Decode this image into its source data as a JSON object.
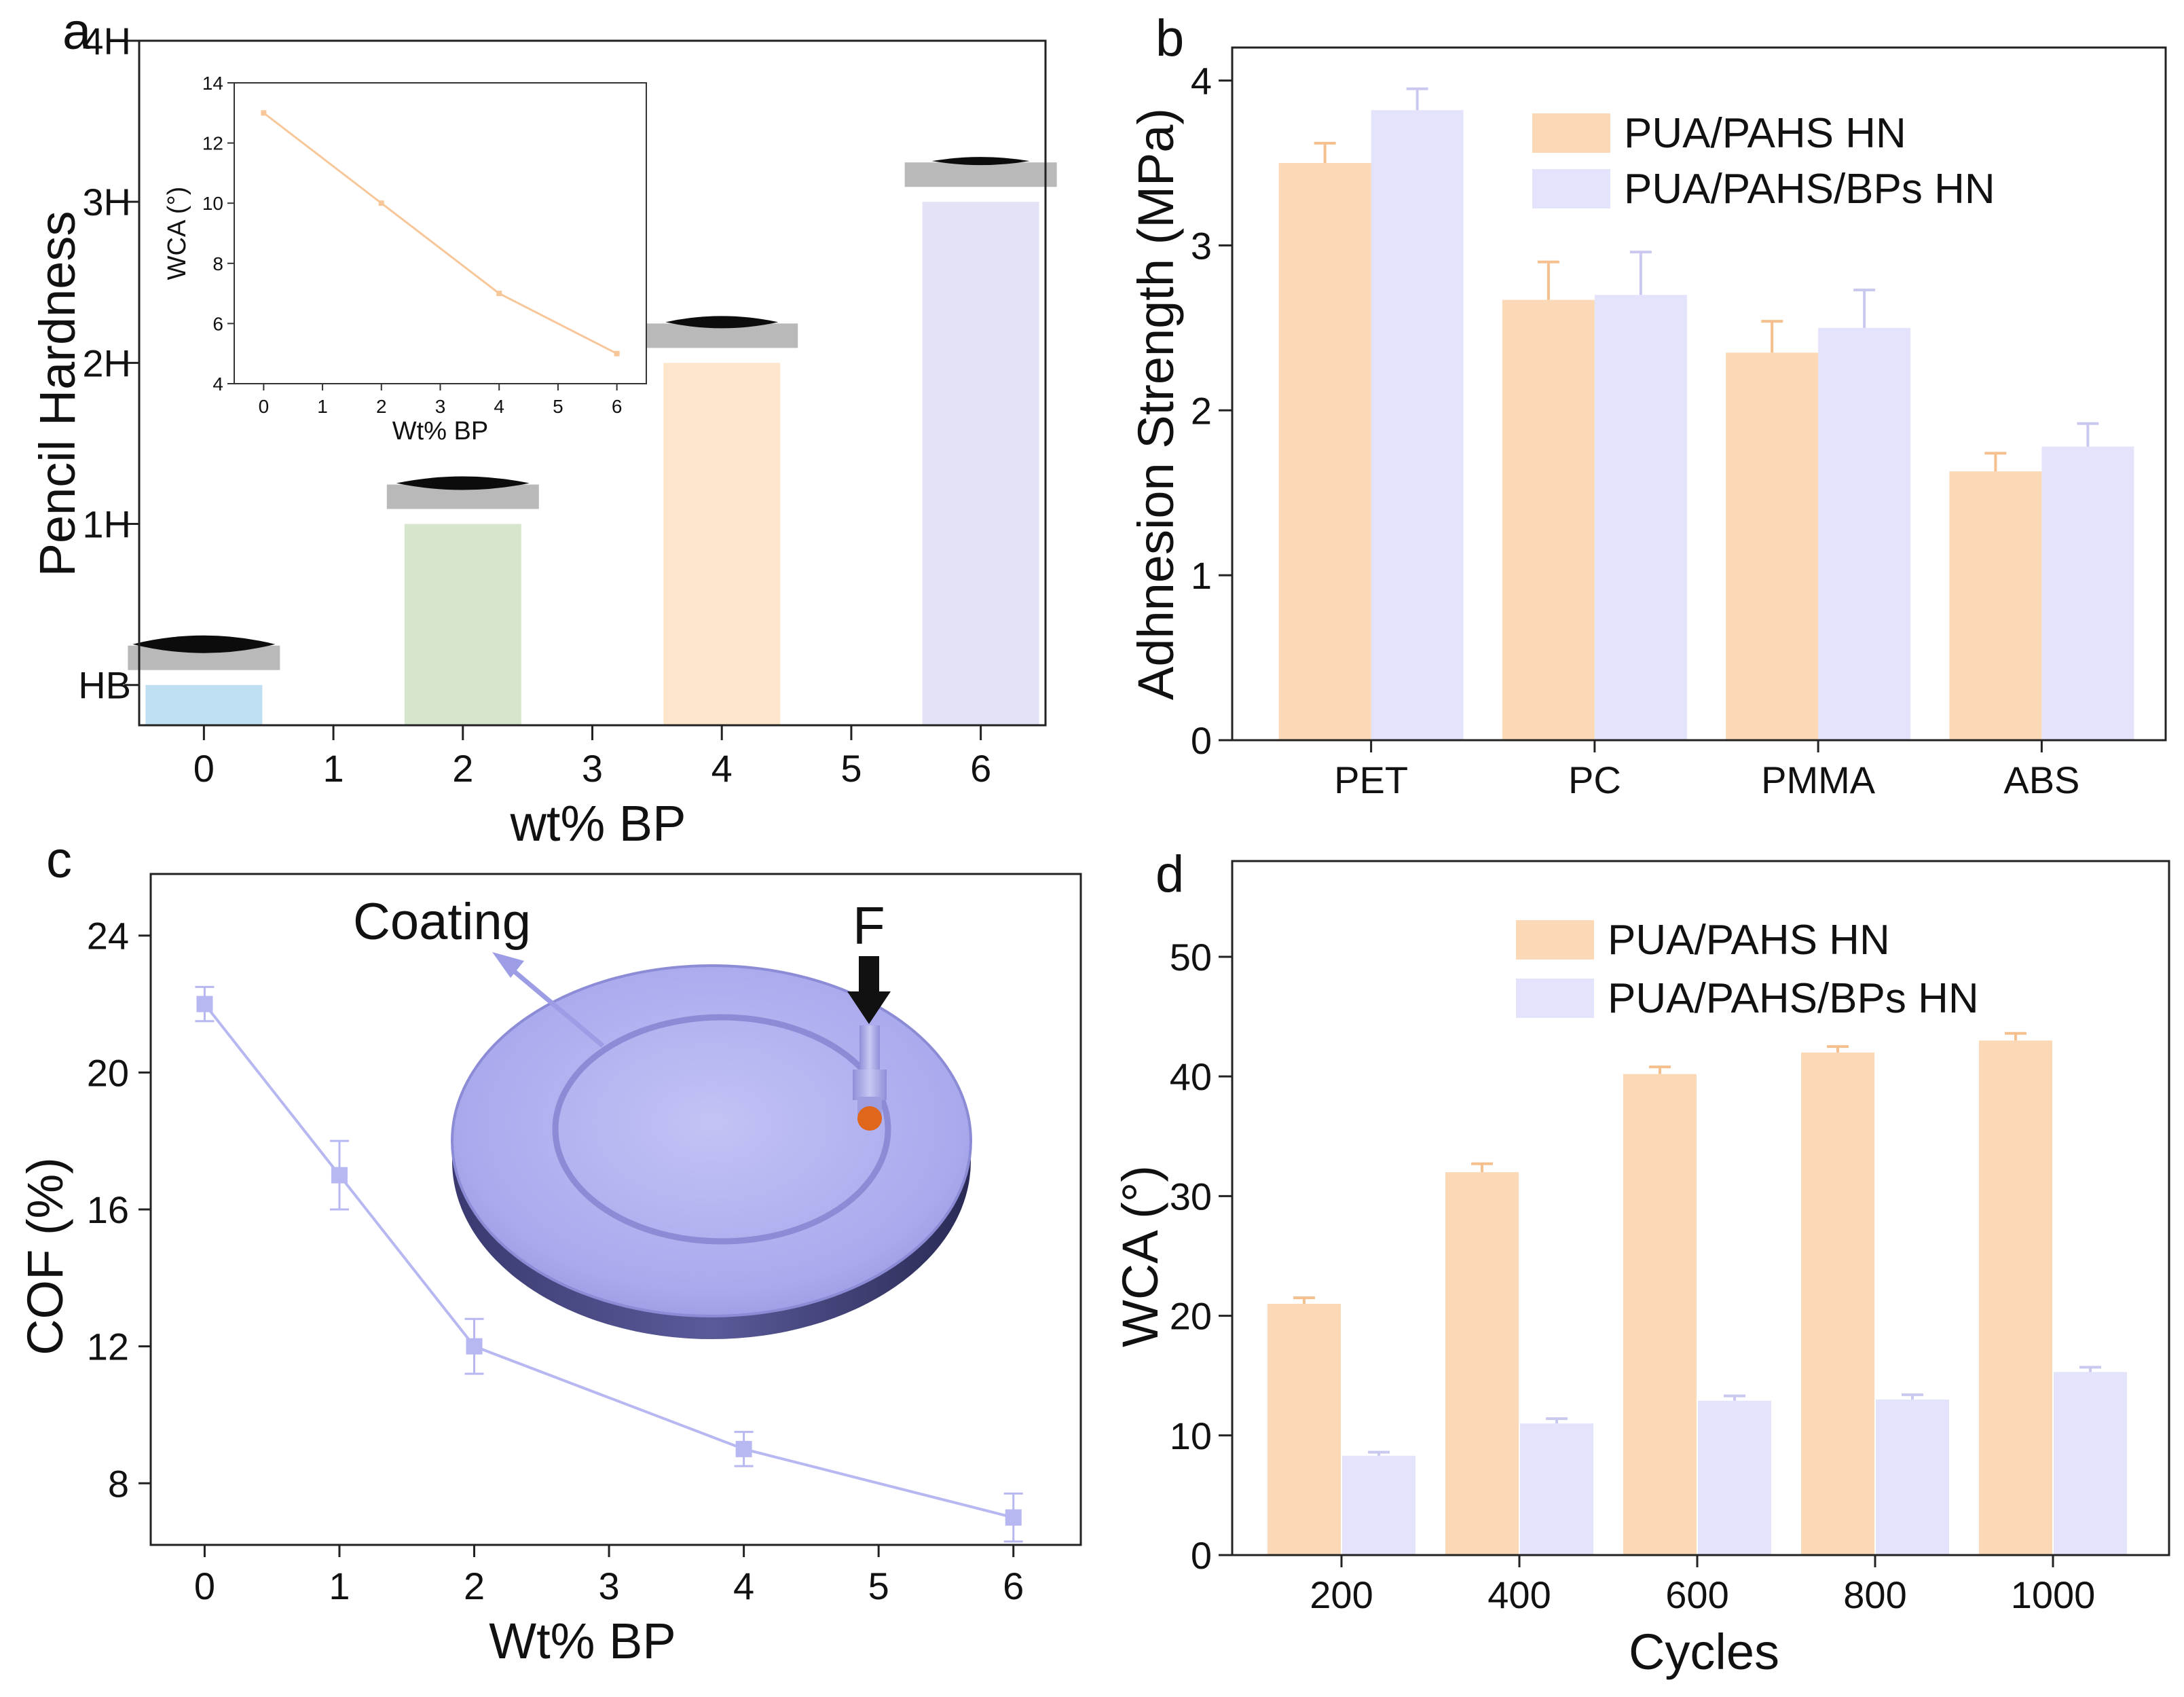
{
  "chart_data": [
    {
      "panel": "a",
      "type": "bar",
      "xlabel": "wt% BP",
      "ylabel": "Pencil Hardness",
      "x_ticks": [
        "0",
        "1",
        "2",
        "3",
        "4",
        "5",
        "6"
      ],
      "y_ticks": [
        "HB",
        "1H",
        "2H",
        "3H",
        "4H"
      ],
      "xlim": [
        -0.5,
        6.5
      ],
      "ylim": [
        -0.25,
        4
      ],
      "categories": [
        "0",
        "2",
        "4",
        "6"
      ],
      "x": [
        0,
        2,
        4,
        6
      ],
      "values": [
        0,
        1,
        2,
        3
      ],
      "bar_colors": [
        "#bfe0f2",
        "#d6e6cc",
        "#fde6cc",
        "#e3e3f8"
      ],
      "inset": {
        "type": "line",
        "xlabel": "Wt% BP",
        "ylabel": "WCA (°)",
        "x_ticks": [
          "0",
          "1",
          "2",
          "3",
          "4",
          "5",
          "6"
        ],
        "y_ticks": [
          "4",
          "6",
          "8",
          "10",
          "12",
          "14"
        ],
        "xlim": [
          -0.5,
          6.5
        ],
        "ylim": [
          4,
          14
        ],
        "x": [
          0,
          2,
          4,
          6
        ],
        "y": [
          13,
          10,
          7,
          5
        ],
        "color": "#f7c79a"
      }
    },
    {
      "panel": "b",
      "type": "bar",
      "xlabel": "",
      "ylabel": "Adhnesion Strength (MPa)",
      "categories": [
        "PET",
        "PC",
        "PMMA",
        "ABS"
      ],
      "y_ticks": [
        "0",
        "1",
        "2",
        "3",
        "4"
      ],
      "ylim": [
        0,
        4.2
      ],
      "series": [
        {
          "name": "PUA/PAHS HN",
          "values": [
            3.5,
            2.67,
            2.35,
            1.63
          ],
          "errors": [
            0.12,
            0.23,
            0.19,
            0.11
          ],
          "color": "#fcd9b6"
        },
        {
          "name": "PUA/PAHS/BPs HN",
          "values": [
            3.82,
            2.7,
            2.5,
            1.78
          ],
          "errors": [
            0.13,
            0.26,
            0.23,
            0.14
          ],
          "color": "#e3e3fb"
        }
      ]
    },
    {
      "panel": "c",
      "type": "line",
      "xlabel": "Wt% BP",
      "ylabel": "COF (%)",
      "x_ticks": [
        "0",
        "1",
        "2",
        "3",
        "4",
        "5",
        "6"
      ],
      "y_ticks": [
        "8",
        "12",
        "16",
        "20",
        "24"
      ],
      "xlim": [
        -0.4,
        6.5
      ],
      "ylim": [
        6.2,
        25.8
      ],
      "x": [
        0,
        1,
        2,
        4,
        6
      ],
      "y": [
        22,
        17,
        12,
        9,
        7
      ],
      "errors": [
        0.5,
        1,
        0.8,
        0.5,
        0.7
      ],
      "color": "#b7b7f2",
      "annotations": {
        "coating": "Coating",
        "force": "F"
      }
    },
    {
      "panel": "d",
      "type": "bar",
      "xlabel": "Cycles",
      "ylabel": "WCA (°)",
      "categories": [
        "200",
        "400",
        "600",
        "800",
        "1000"
      ],
      "y_ticks": [
        "0",
        "10",
        "20",
        "30",
        "40",
        "50"
      ],
      "ylim": [
        0,
        58
      ],
      "series": [
        {
          "name": "PUA/PAHS HN",
          "values": [
            21,
            32,
            40.2,
            42,
            43
          ],
          "errors": [
            0.5,
            0.7,
            0.6,
            0.5,
            0.6
          ],
          "color": "#fcd9b6"
        },
        {
          "name": "PUA/PAHS/BPs HN",
          "values": [
            8.3,
            11,
            12.9,
            13,
            15.3
          ],
          "errors": [
            0.3,
            0.4,
            0.4,
            0.4,
            0.4
          ],
          "color": "#e3e3fb"
        }
      ]
    }
  ]
}
